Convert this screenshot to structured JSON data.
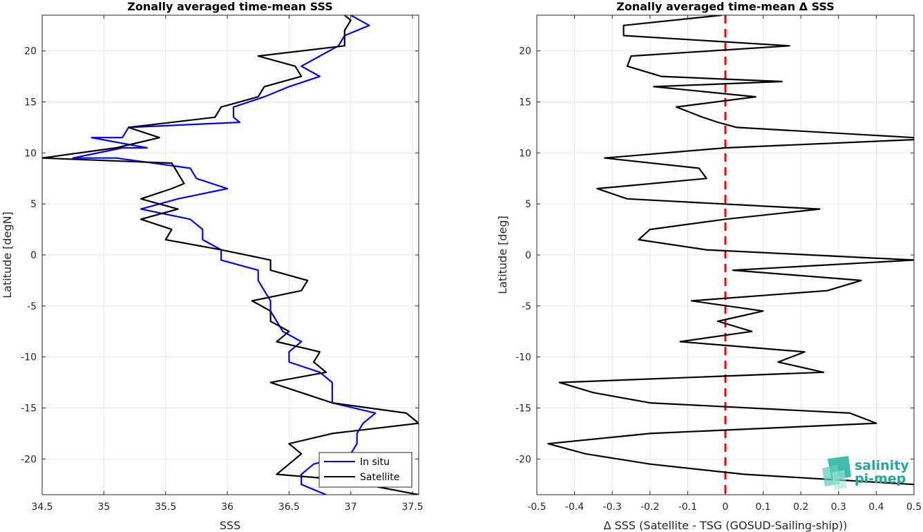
{
  "chart_data": [
    {
      "type": "line",
      "title": "Zonally averaged time-mean SSS",
      "xlabel": "SSS",
      "ylabel": "Latitude [degN]",
      "xlim": [
        34.5,
        37.55
      ],
      "ylim": [
        -23.5,
        23.5
      ],
      "xticks": [
        "34.5",
        "35",
        "35.5",
        "36",
        "36.5",
        "37",
        "37.5"
      ],
      "yticks": [
        "-20",
        "-15",
        "-10",
        "-5",
        "0",
        "5",
        "10",
        "15",
        "20"
      ],
      "grid": true,
      "legend_position": "bottom-right",
      "series": [
        {
          "name": "In situ",
          "color": "#0000ff",
          "points": [
            [
              37.0,
              23.5
            ],
            [
              37.15,
              22.5
            ],
            [
              36.95,
              21.5
            ],
            [
              36.9,
              20.5
            ],
            [
              36.75,
              19.5
            ],
            [
              36.6,
              18.5
            ],
            [
              36.75,
              17.5
            ],
            [
              36.5,
              16.5
            ],
            [
              36.3,
              15.5
            ],
            [
              36.05,
              14.5
            ],
            [
              36.05,
              13.5
            ],
            [
              36.1,
              13.0
            ],
            [
              35.2,
              12.5
            ],
            [
              35.15,
              11.5
            ],
            [
              34.9,
              11.5
            ],
            [
              35.35,
              10.5
            ],
            [
              35.15,
              10.5
            ],
            [
              34.75,
              9.5
            ],
            [
              35.1,
              9.5
            ],
            [
              35.7,
              8.5
            ],
            [
              35.75,
              7.5
            ],
            [
              36.0,
              6.5
            ],
            [
              35.6,
              5.5
            ],
            [
              35.3,
              4.5
            ],
            [
              35.7,
              3.5
            ],
            [
              35.8,
              2.5
            ],
            [
              35.8,
              1.5
            ],
            [
              35.95,
              0.5
            ],
            [
              35.95,
              -0.5
            ],
            [
              36.25,
              -1.5
            ],
            [
              36.25,
              -2.5
            ],
            [
              36.3,
              -3.5
            ],
            [
              36.35,
              -4.5
            ],
            [
              36.35,
              -5.5
            ],
            [
              36.4,
              -6.5
            ],
            [
              36.45,
              -7.5
            ],
            [
              36.6,
              -8.5
            ],
            [
              36.5,
              -9.5
            ],
            [
              36.5,
              -10.5
            ],
            [
              36.75,
              -11.5
            ],
            [
              36.85,
              -12.5
            ],
            [
              36.85,
              -13.5
            ],
            [
              36.85,
              -14.5
            ],
            [
              37.2,
              -15.5
            ],
            [
              37.1,
              -16.5
            ],
            [
              37.05,
              -17.5
            ],
            [
              37.05,
              -18.5
            ],
            [
              37.0,
              -19.5
            ],
            [
              36.7,
              -20.5
            ],
            [
              36.6,
              -21.5
            ],
            [
              36.6,
              -22.5
            ],
            [
              36.8,
              -23.5
            ]
          ]
        },
        {
          "name": "Satellite",
          "color": "#000000",
          "points": [
            [
              36.95,
              23.5
            ],
            [
              37.0,
              23.0
            ],
            [
              36.95,
              22.0
            ],
            [
              36.95,
              20.5
            ],
            [
              36.25,
              19.5
            ],
            [
              36.55,
              18.5
            ],
            [
              36.6,
              17.5
            ],
            [
              36.3,
              16.5
            ],
            [
              36.25,
              15.5
            ],
            [
              35.95,
              14.5
            ],
            [
              35.9,
              13.5
            ],
            [
              35.2,
              12.5
            ],
            [
              35.45,
              11.5
            ],
            [
              35.1,
              10.5
            ],
            [
              34.5,
              9.5
            ],
            [
              35.55,
              9.0
            ],
            [
              35.6,
              8.0
            ],
            [
              35.65,
              7.0
            ],
            [
              35.55,
              6.5
            ],
            [
              35.3,
              5.5
            ],
            [
              35.6,
              4.5
            ],
            [
              35.3,
              3.5
            ],
            [
              35.55,
              2.5
            ],
            [
              35.5,
              1.5
            ],
            [
              35.95,
              0.5
            ],
            [
              36.35,
              -0.5
            ],
            [
              36.35,
              -1.5
            ],
            [
              36.65,
              -2.5
            ],
            [
              36.6,
              -3.5
            ],
            [
              36.2,
              -4.5
            ],
            [
              36.35,
              -5.5
            ],
            [
              36.35,
              -6.5
            ],
            [
              36.5,
              -7.5
            ],
            [
              36.4,
              -8.5
            ],
            [
              36.75,
              -9.5
            ],
            [
              36.7,
              -10.5
            ],
            [
              36.8,
              -11.5
            ],
            [
              36.35,
              -12.5
            ],
            [
              36.6,
              -13.5
            ],
            [
              36.85,
              -14.5
            ],
            [
              37.45,
              -15.5
            ],
            [
              37.55,
              -16.5
            ],
            [
              36.85,
              -17.5
            ],
            [
              36.5,
              -18.5
            ],
            [
              36.6,
              -19.5
            ],
            [
              36.5,
              -20.5
            ],
            [
              36.4,
              -21.5
            ],
            [
              36.9,
              -22.0
            ],
            [
              37.55,
              -23.5
            ]
          ]
        }
      ]
    },
    {
      "type": "line",
      "title": "Zonally averaged time-mean Δ SSS",
      "xlabel": "Δ SSS (Satellite - TSG (GOSUD-Sailing-ship))",
      "ylabel": "Latitude [deg]",
      "xlim": [
        -0.5,
        0.5
      ],
      "ylim": [
        -23.5,
        23.5
      ],
      "xticks": [
        "-0.5",
        "-0.4",
        "-0.3",
        "-0.2",
        "-0.1",
        "0",
        "0.1",
        "0.2",
        "0.3",
        "0.4",
        "0.5"
      ],
      "yticks": [
        "-20",
        "-15",
        "-10",
        "-5",
        "0",
        "5",
        "10",
        "15",
        "20"
      ],
      "grid": true,
      "reference_line": {
        "x": 0,
        "color": "#ff0000",
        "style": "dashed"
      },
      "series": [
        {
          "color": "#000000",
          "points": [
            [
              -0.01,
              23.5
            ],
            [
              -0.27,
              22.5
            ],
            [
              -0.27,
              21.5
            ],
            [
              0.17,
              20.5
            ],
            [
              -0.25,
              19.5
            ],
            [
              -0.26,
              18.5
            ],
            [
              -0.17,
              17.5
            ],
            [
              0.15,
              17.0
            ],
            [
              -0.19,
              16.5
            ],
            [
              0.08,
              15.5
            ],
            [
              -0.13,
              14.5
            ],
            [
              -0.06,
              13.5
            ],
            [
              -0.02,
              13.0
            ],
            [
              0.03,
              12.5
            ],
            [
              0.5,
              11.5
            ],
            [
              0.5,
              11.3
            ],
            [
              0.0,
              10.5
            ],
            [
              -0.32,
              9.5
            ],
            [
              -0.07,
              8.5
            ],
            [
              -0.05,
              7.5
            ],
            [
              -0.34,
              6.5
            ],
            [
              -0.26,
              5.5
            ],
            [
              0.25,
              4.5
            ],
            [
              0.0,
              3.5
            ],
            [
              -0.2,
              2.5
            ],
            [
              -0.23,
              1.5
            ],
            [
              -0.05,
              0.5
            ],
            [
              0.5,
              -0.5
            ],
            [
              0.02,
              -1.5
            ],
            [
              0.36,
              -2.5
            ],
            [
              0.27,
              -3.5
            ],
            [
              -0.09,
              -4.5
            ],
            [
              0.1,
              -5.5
            ],
            [
              -0.02,
              -6.5
            ],
            [
              0.07,
              -7.5
            ],
            [
              -0.12,
              -8.5
            ],
            [
              0.21,
              -9.5
            ],
            [
              0.14,
              -10.5
            ],
            [
              0.26,
              -11.5
            ],
            [
              -0.44,
              -12.5
            ],
            [
              -0.35,
              -13.5
            ],
            [
              -0.2,
              -14.5
            ],
            [
              0.33,
              -15.5
            ],
            [
              0.4,
              -16.5
            ],
            [
              -0.2,
              -17.5
            ],
            [
              -0.47,
              -18.5
            ],
            [
              -0.37,
              -19.5
            ],
            [
              -0.2,
              -20.5
            ],
            [
              0.05,
              -21.5
            ],
            [
              0.5,
              -22.5
            ]
          ]
        }
      ]
    }
  ],
  "legend": {
    "entries": [
      "In situ",
      "Satellite"
    ]
  },
  "logo": {
    "line1": "salinity",
    "line2": "pi-mep"
  }
}
